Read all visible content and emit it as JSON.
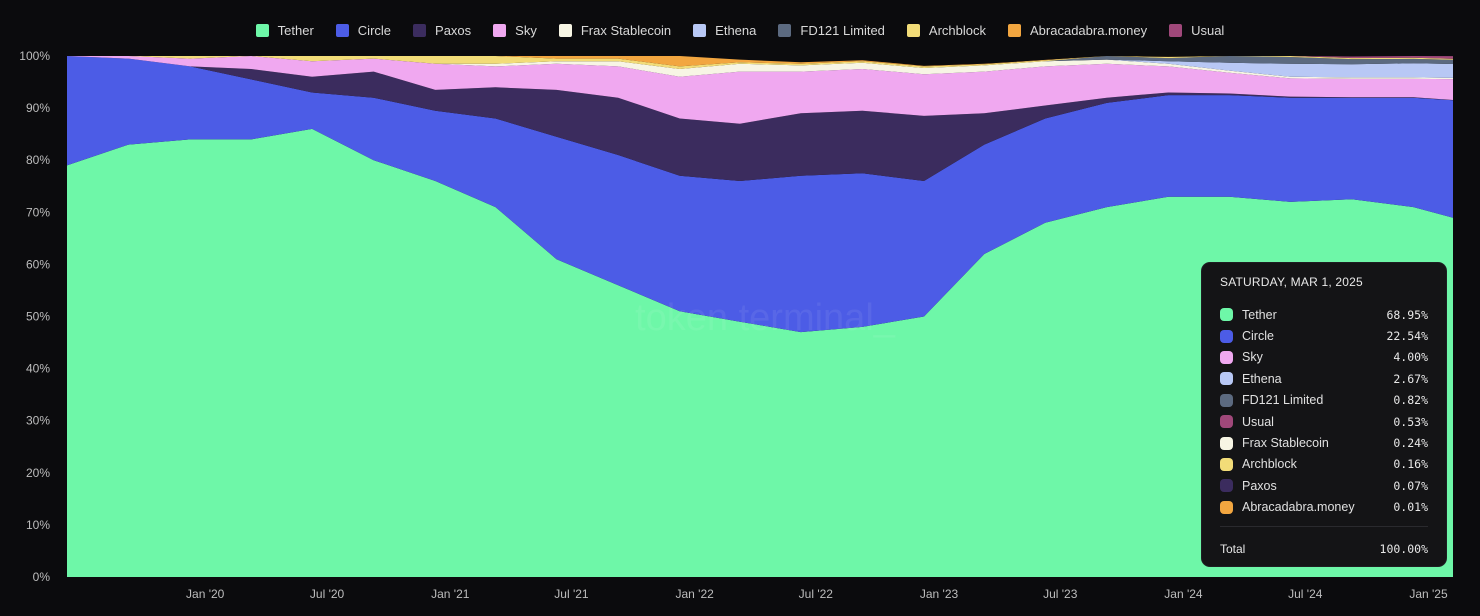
{
  "legend": [
    {
      "name": "Tether",
      "color": "#6ef7a8"
    },
    {
      "name": "Circle",
      "color": "#4c5ce6"
    },
    {
      "name": "Paxos",
      "color": "#3b2c5e"
    },
    {
      "name": "Sky",
      "color": "#f0a8f0"
    },
    {
      "name": "Frax Stablecoin",
      "color": "#f7f5e4"
    },
    {
      "name": "Ethena",
      "color": "#b8c8f5"
    },
    {
      "name": "FD121 Limited",
      "color": "#5c6a80"
    },
    {
      "name": "Archblock",
      "color": "#f2dc78"
    },
    {
      "name": "Abracadabra.money",
      "color": "#f2a640"
    },
    {
      "name": "Usual",
      "color": "#a0487a"
    }
  ],
  "watermark": "token terminal_",
  "tooltip": {
    "date": "SATURDAY, MAR 1, 2025",
    "rows": [
      {
        "name": "Tether",
        "value": "68.95%",
        "color": "#6ef7a8"
      },
      {
        "name": "Circle",
        "value": "22.54%",
        "color": "#4c5ce6"
      },
      {
        "name": "Sky",
        "value": "4.00%",
        "color": "#f0a8f0"
      },
      {
        "name": "Ethena",
        "value": "2.67%",
        "color": "#b8c8f5"
      },
      {
        "name": "FD121 Limited",
        "value": "0.82%",
        "color": "#5c6a80"
      },
      {
        "name": "Usual",
        "value": "0.53%",
        "color": "#a0487a"
      },
      {
        "name": "Frax Stablecoin",
        "value": "0.24%",
        "color": "#f7f5e4"
      },
      {
        "name": "Archblock",
        "value": "0.16%",
        "color": "#f2dc78"
      },
      {
        "name": "Paxos",
        "value": "0.07%",
        "color": "#3b2c5e"
      },
      {
        "name": "Abracadabra.money",
        "value": "0.01%",
        "color": "#f2a640"
      }
    ],
    "total_label": "Total",
    "total_value": "100.00%"
  },
  "chart_data": {
    "type": "area",
    "stacked": true,
    "normalized": true,
    "xlim": [
      "2019-07-01",
      "2025-03-01"
    ],
    "ylim": [
      0,
      100
    ],
    "yticks": [
      "0%",
      "10%",
      "20%",
      "30%",
      "40%",
      "50%",
      "60%",
      "70%",
      "80%",
      "90%",
      "100%"
    ],
    "ytick_values": [
      0,
      10,
      20,
      30,
      40,
      50,
      60,
      70,
      80,
      90,
      100
    ],
    "xticks": [
      "Jan '20",
      "Jul '20",
      "Jan '21",
      "Jul '21",
      "Jan '22",
      "Jul '22",
      "Jan '23",
      "Jul '23",
      "Jan '24",
      "Jul '24",
      "Jan '25"
    ],
    "xtick_dates": [
      "2020-01-01",
      "2020-07-01",
      "2021-01-01",
      "2021-07-01",
      "2022-01-01",
      "2022-07-01",
      "2023-01-01",
      "2023-07-01",
      "2024-01-01",
      "2024-07-01",
      "2025-01-01"
    ],
    "grid": false,
    "legend_position": "top",
    "x": [
      "2019-07-01",
      "2019-10-01",
      "2020-01-01",
      "2020-04-01",
      "2020-07-01",
      "2020-10-01",
      "2021-01-01",
      "2021-04-01",
      "2021-07-01",
      "2021-10-01",
      "2022-01-01",
      "2022-04-01",
      "2022-07-01",
      "2022-10-01",
      "2023-01-01",
      "2023-04-01",
      "2023-07-01",
      "2023-10-01",
      "2024-01-01",
      "2024-04-01",
      "2024-07-01",
      "2024-10-01",
      "2025-01-01",
      "2025-03-01"
    ],
    "series": [
      {
        "name": "Tether",
        "color": "#6ef7a8",
        "values": [
          79,
          83,
          84,
          84,
          86,
          80,
          76,
          71,
          61,
          56,
          51,
          49,
          47,
          48,
          50,
          62,
          68,
          71,
          73,
          73,
          72,
          72.5,
          71,
          68.95
        ]
      },
      {
        "name": "Circle",
        "color": "#4c5ce6",
        "values": [
          21,
          16.5,
          14,
          11.5,
          7,
          12,
          13.5,
          17,
          23.5,
          25,
          26,
          27,
          30,
          29.5,
          26,
          21,
          20,
          20,
          19.5,
          19.5,
          20,
          19.5,
          21,
          22.54
        ]
      },
      {
        "name": "Paxos",
        "color": "#3b2c5e",
        "values": [
          0,
          0,
          0,
          2,
          3,
          5,
          4,
          6,
          9,
          11,
          11,
          11,
          12,
          12,
          12.5,
          6,
          2.5,
          1,
          0.5,
          0.3,
          0.2,
          0.1,
          0.1,
          0.07
        ]
      },
      {
        "name": "Sky",
        "color": "#f0a8f0",
        "values": [
          0,
          0.5,
          1.5,
          2.5,
          3,
          2.5,
          5,
          4,
          5,
          6,
          8,
          10,
          8,
          8,
          8,
          8,
          7.5,
          6.5,
          5,
          4,
          3.5,
          3.5,
          3.5,
          4.0
        ]
      },
      {
        "name": "Frax Stablecoin",
        "color": "#f7f5e4",
        "values": [
          0,
          0,
          0,
          0,
          0,
          0,
          0,
          0.5,
          0.5,
          1,
          1.5,
          1.5,
          1.2,
          1.2,
          1.2,
          1.2,
          1.0,
          0.8,
          0.5,
          0.4,
          0.3,
          0.3,
          0.3,
          0.24
        ]
      },
      {
        "name": "Ethena",
        "color": "#b8c8f5",
        "values": [
          0,
          0,
          0,
          0,
          0,
          0,
          0,
          0,
          0,
          0,
          0,
          0,
          0,
          0,
          0,
          0,
          0,
          0,
          0.5,
          1.5,
          2.5,
          2.5,
          2.7,
          2.67
        ]
      },
      {
        "name": "FD121 Limited",
        "color": "#5c6a80",
        "values": [
          0,
          0,
          0,
          0,
          0,
          0,
          0,
          0,
          0,
          0,
          0,
          0,
          0,
          0,
          0,
          0,
          0,
          0.7,
          0.6,
          1.5,
          1.3,
          1.0,
          0.85,
          0.82
        ]
      },
      {
        "name": "Archblock",
        "color": "#f2dc78",
        "values": [
          0,
          0,
          0.5,
          0,
          1,
          0.5,
          1.5,
          1.5,
          0.5,
          0.5,
          0.5,
          0.3,
          0.3,
          0.3,
          0.3,
          0.2,
          0.2,
          0.2,
          0.2,
          0.2,
          0.2,
          0.2,
          0.2,
          0.16
        ]
      },
      {
        "name": "Abracadabra.money",
        "color": "#f2a640",
        "values": [
          0,
          0,
          0,
          0,
          0,
          0,
          0,
          0,
          0.5,
          0.5,
          2,
          0.5,
          0.3,
          0.2,
          0.1,
          0.1,
          0.05,
          0.05,
          0.02,
          0.02,
          0.02,
          0.01,
          0.01,
          0.01
        ]
      },
      {
        "name": "Usual",
        "color": "#a0487a",
        "values": [
          0,
          0,
          0,
          0,
          0,
          0,
          0,
          0,
          0,
          0,
          0,
          0,
          0,
          0,
          0,
          0,
          0,
          0,
          0,
          0,
          0,
          0.3,
          0.5,
          0.53
        ]
      }
    ]
  }
}
